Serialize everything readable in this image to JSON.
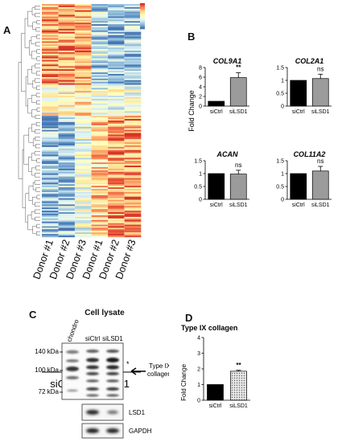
{
  "panels": {
    "A": {
      "label": "A",
      "columns": [
        "Donor #1",
        "Donor #2",
        "Donor #3",
        "Donor #1",
        "Donor #2",
        "Donor #3"
      ],
      "groups": [
        "siCrtl",
        "siLSD1"
      ]
    },
    "B": {
      "label": "B",
      "ylabel": "Fold Change"
    },
    "C": {
      "label": "C",
      "title": "Cell lysate",
      "lanes": [
        "chondro",
        "siCtrl",
        "siLSD1"
      ],
      "markers": [
        "140 kDa",
        "100 kDa",
        "72 kDa"
      ],
      "annotation": "Type IX collagen",
      "annotation_line1": "Type IX",
      "annotation_line2": "collagen",
      "star": "*",
      "blots": [
        "LSD1",
        "GAPDH"
      ]
    },
    "D": {
      "label": "D",
      "title": "Type IX collagen",
      "ylabel": "Fold Change"
    }
  },
  "chart_data": [
    {
      "type": "bar",
      "panel": "B",
      "title": "COL9A1",
      "categories": [
        "siCtrl",
        "siLSD1"
      ],
      "values": [
        1,
        5.9
      ],
      "errors": [
        0,
        1.0
      ],
      "ylim": [
        0,
        8
      ],
      "yticks": [
        0,
        2,
        4,
        6,
        8
      ],
      "significance": "**",
      "ylabel": "Fold Change",
      "colors": [
        "#000000",
        "#9b9b9b"
      ]
    },
    {
      "type": "bar",
      "panel": "B",
      "title": "COL2A1",
      "categories": [
        "siCtrl",
        "siLSD1"
      ],
      "values": [
        1,
        1.07
      ],
      "errors": [
        0,
        0.17
      ],
      "ylim": [
        0,
        1.5
      ],
      "yticks": [
        0,
        0.5,
        1,
        1.5
      ],
      "significance": "ns",
      "colors": [
        "#000000",
        "#9b9b9b"
      ]
    },
    {
      "type": "bar",
      "panel": "B",
      "title": "ACAN",
      "categories": [
        "siCtrl",
        "siLSD1"
      ],
      "values": [
        1,
        0.98
      ],
      "errors": [
        0,
        0.15
      ],
      "ylim": [
        0,
        1.5
      ],
      "yticks": [
        0,
        0.5,
        1,
        1.5
      ],
      "significance": "ns",
      "colors": [
        "#000000",
        "#9b9b9b"
      ]
    },
    {
      "type": "bar",
      "panel": "B",
      "title": "COL11A2",
      "categories": [
        "siCtrl",
        "siLSD1"
      ],
      "values": [
        1,
        1.1
      ],
      "errors": [
        0,
        0.18
      ],
      "ylim": [
        0,
        1.5
      ],
      "yticks": [
        0,
        0.5,
        1,
        1.5
      ],
      "significance": "ns",
      "colors": [
        "#000000",
        "#9b9b9b"
      ]
    },
    {
      "type": "bar",
      "panel": "D",
      "title": "Type IX collagen",
      "categories": [
        "siCtrl",
        "siLSD1"
      ],
      "values": [
        1,
        1.85
      ],
      "errors": [
        0,
        0.06
      ],
      "ylim": [
        0,
        4
      ],
      "yticks": [
        0,
        1,
        2,
        3,
        4
      ],
      "significance": "**",
      "ylabel": "Fold Change",
      "colors": [
        "#000000",
        "#c8c8c8"
      ]
    }
  ]
}
